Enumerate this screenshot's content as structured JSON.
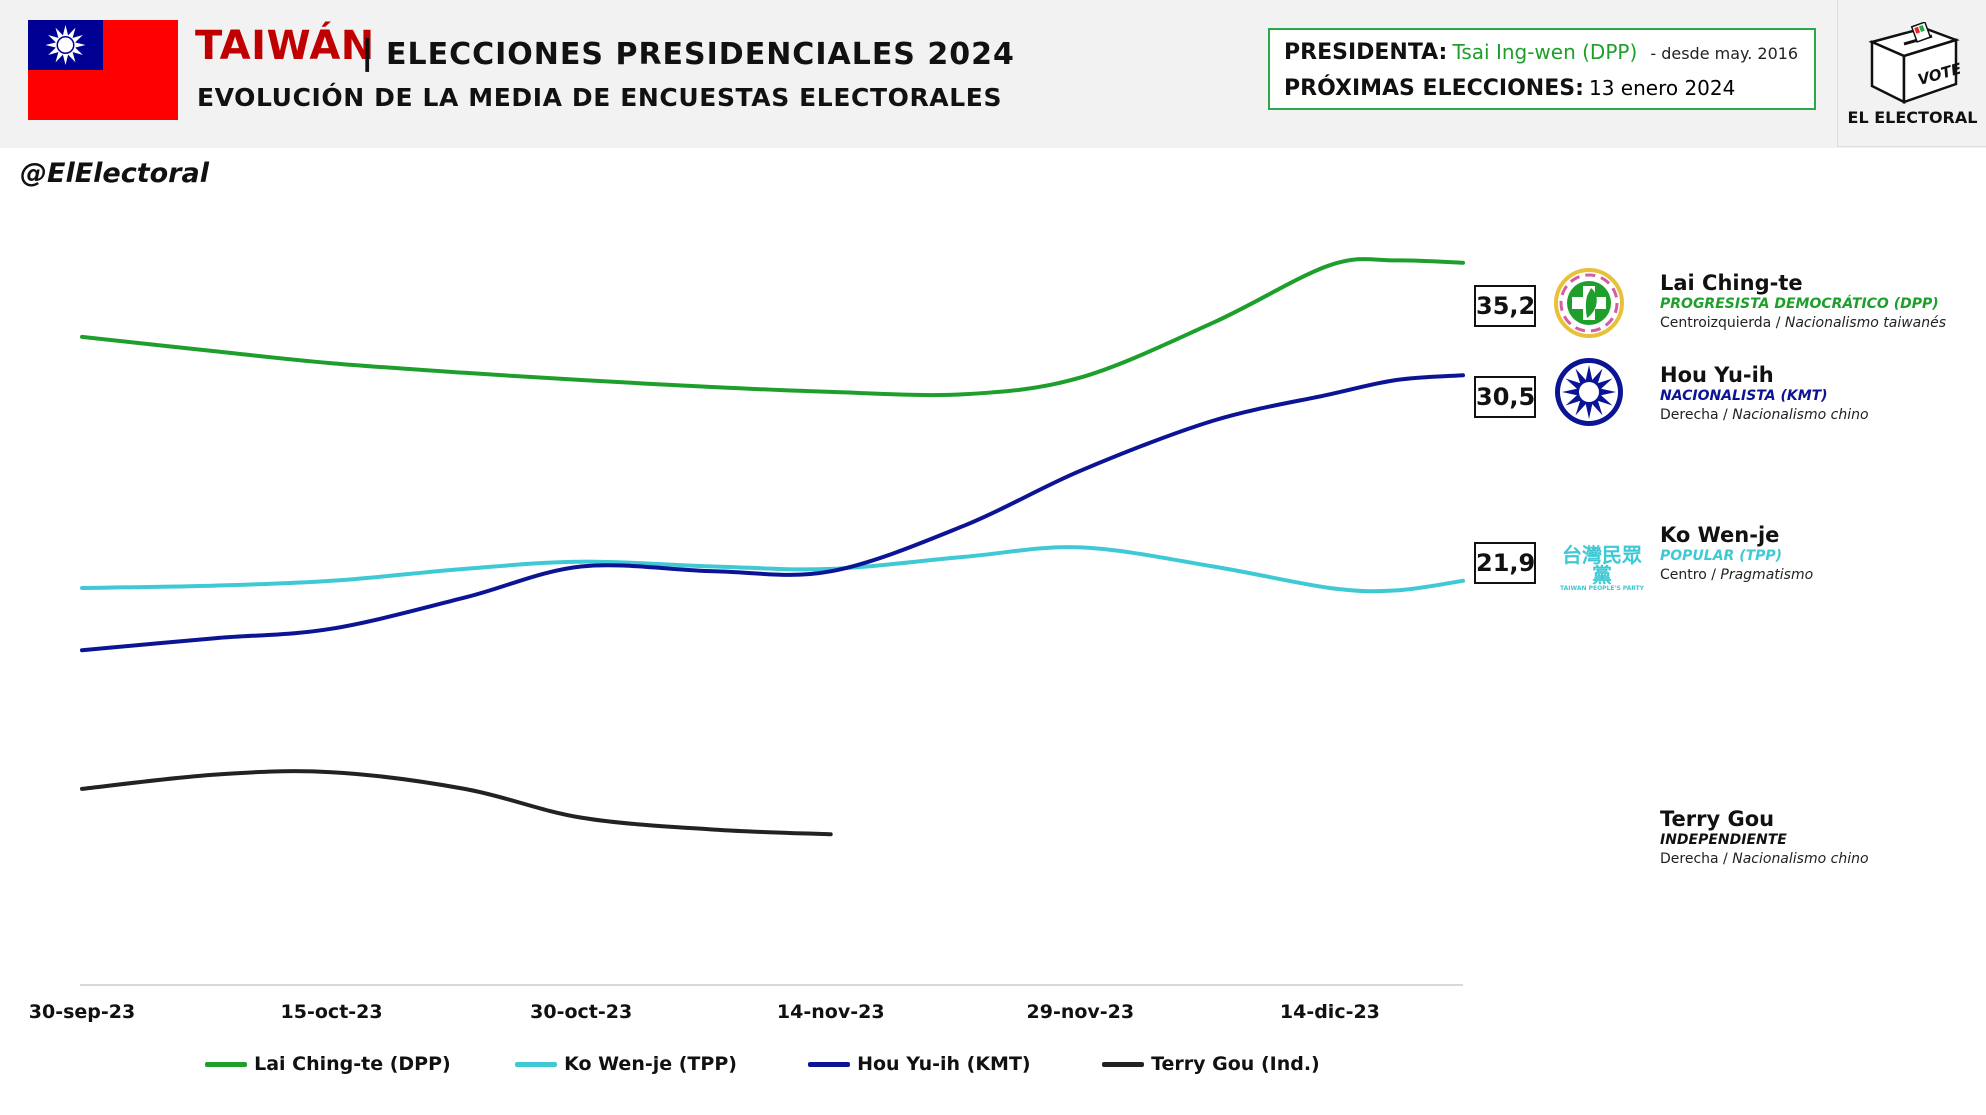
{
  "header": {
    "country": "TAIWÁN",
    "separator": "|",
    "title": "ELECCIONES PRESIDENCIALES 2024",
    "subtitle": "EVOLUCIÓN DE LA MEDIA DE ENCUESTAS ELECTORALES"
  },
  "info": {
    "president_key": "PRESIDENTA:",
    "president_value": "Tsai Ing-wen (DPP)",
    "president_since": "- desde may. 2016",
    "next_key": "PRÓXIMAS ELECCIONES:",
    "next_value": "13 enero 2024"
  },
  "brand": {
    "handle": "@ElElectoral",
    "logo_box_text": "VOTE",
    "logo_text": "EL ELECTORAL"
  },
  "candidates": [
    {
      "name": "Lai Ching-te",
      "party": "PROGRESISTA DEMOCRÁTICO (DPP)",
      "ideology": "Centroizquierda",
      "ideology_detail": "Nacionalismo taiwanés",
      "end_value": "35,2",
      "party_color": "#1e9f2c"
    },
    {
      "name": "Hou Yu-ih",
      "party": "NACIONALISTA (KMT)",
      "ideology": "Derecha",
      "ideology_detail": "Nacionalismo chino",
      "end_value": "30,5",
      "party_color": "#0c1496"
    },
    {
      "name": "Ko Wen-je",
      "party": "POPULAR (TPP)",
      "ideology": "Centro",
      "ideology_detail": "Pragmatismo",
      "end_value": "21,9",
      "party_color": "#3fc9d4",
      "logo_chars": "台灣民眾黨",
      "logo_small": "TAIWAN PEOPLE'S PARTY"
    },
    {
      "name": "Terry Gou",
      "party": "INDEPENDIENTE",
      "ideology": "Derecha",
      "ideology_detail": "Nacionalismo chino",
      "party_color": "#111111"
    }
  ],
  "chart_data": {
    "type": "line",
    "title": "EVOLUCIÓN DE LA MEDIA DE ENCUESTAS ELECTORALES",
    "x": [
      "30-sep-23",
      "8-oct-23",
      "15-oct-23",
      "23-oct-23",
      "30-oct-23",
      "7-nov-23",
      "14-nov-23",
      "22-nov-23",
      "29-nov-23",
      "7-dic-23",
      "14-dic-23",
      "18-dic-23",
      "22-dic-23"
    ],
    "x_tick_labels": [
      "30-sep-23",
      "15-oct-23",
      "30-oct-23",
      "14-nov-23",
      "29-nov-23",
      "14-dic-23"
    ],
    "ylim": [
      5,
      40
    ],
    "grid": false,
    "legend_position": "bottom",
    "series": [
      {
        "name": "Lai Ching-te (DPP)",
        "color": "#1e9f2c",
        "values": [
          32.1,
          31.5,
          31.0,
          30.6,
          30.3,
          30.0,
          29.8,
          29.7,
          30.4,
          32.7,
          35.1,
          35.3,
          35.2
        ]
      },
      {
        "name": "Ko Wen-je (TPP)",
        "color": "#3fc9d4",
        "values": [
          21.6,
          21.7,
          21.9,
          22.4,
          22.7,
          22.5,
          22.4,
          22.9,
          23.3,
          22.5,
          21.6,
          21.5,
          21.9
        ]
      },
      {
        "name": "Hou Yu-ih (KMT)",
        "color": "#0c1496",
        "values": [
          19.0,
          19.5,
          19.9,
          21.2,
          22.5,
          22.3,
          22.3,
          24.2,
          26.5,
          28.6,
          29.7,
          30.3,
          30.5
        ]
      },
      {
        "name": "Terry Gou (Ind.)",
        "color": "#222222",
        "values": [
          13.2,
          13.8,
          13.9,
          13.2,
          12.0,
          11.5,
          11.3,
          null,
          null,
          null,
          null,
          null,
          null
        ]
      }
    ]
  }
}
